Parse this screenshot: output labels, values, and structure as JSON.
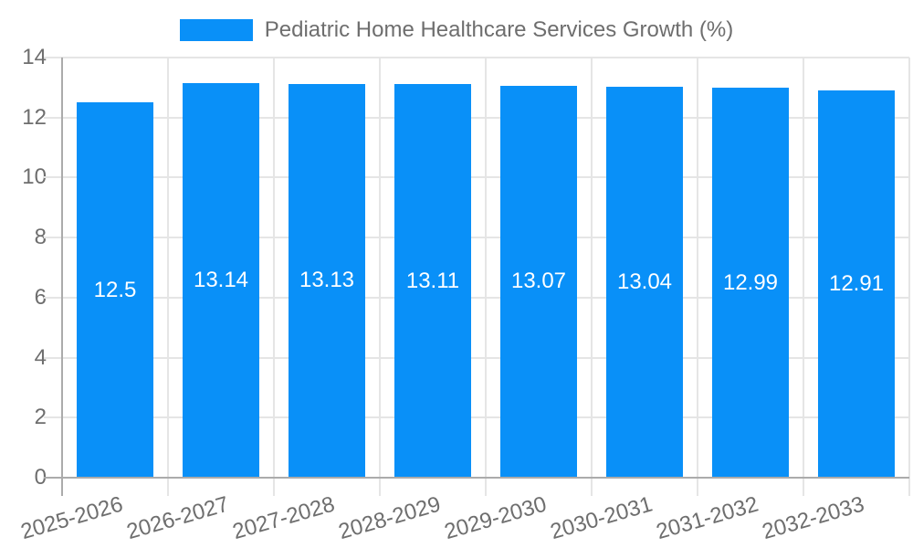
{
  "legend": {
    "items": [
      {
        "label": "Pediatric Home Healthcare Services Growth (%)",
        "color": "#0990F8"
      }
    ]
  },
  "chart_data": {
    "type": "bar",
    "title": "Pediatric Home Healthcare Services Growth (%)",
    "categories": [
      "2025-2026",
      "2026-2027",
      "2027-2028",
      "2028-2029",
      "2029-2030",
      "2030-2031",
      "2031-2032",
      "2032-2033"
    ],
    "values": [
      12.5,
      13.14,
      13.13,
      13.11,
      13.07,
      13.04,
      12.99,
      12.91
    ],
    "value_labels": [
      "12.5",
      "13.14",
      "13.13",
      "13.11",
      "13.07",
      "13.04",
      "12.99",
      "12.91"
    ],
    "xlabel": "",
    "ylabel": "",
    "ylim": [
      0,
      14
    ],
    "yticks": [
      0,
      2,
      4,
      6,
      8,
      10,
      12,
      14
    ],
    "grid": true,
    "legend_position": "top",
    "bar_color": "#0990F8",
    "bar_label_color": "#ffffff",
    "axis_text_color": "#6e6e6e",
    "gridline_color": "#e5e5e5",
    "axis_line_color": "#ababab"
  }
}
